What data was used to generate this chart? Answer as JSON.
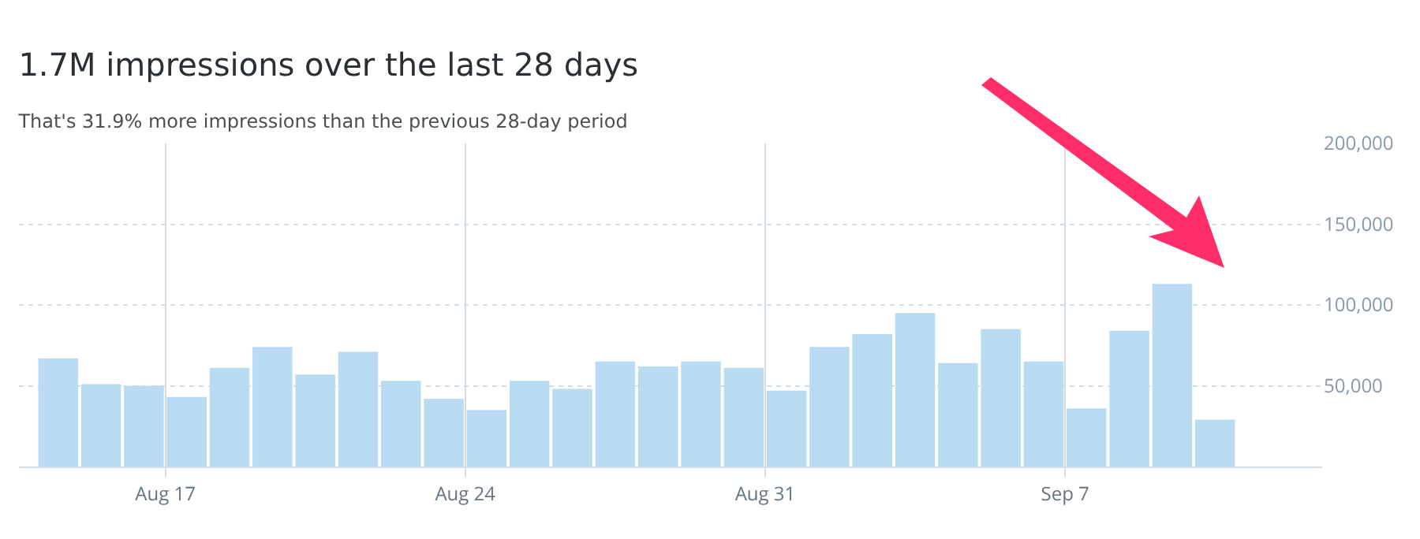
{
  "chart_data": {
    "type": "bar",
    "title": "1.7M impressions over the last 28 days",
    "subtitle": "That's 31.9% more impressions than the previous 28-day period",
    "x": [
      "--08-14T12:00",
      "--08-15T12:00",
      "--08-16T12:00",
      "--08-17T12:00",
      "--08-18T12:00",
      "--08-19T12:00",
      "--08-20T12:00",
      "--08-21T12:00",
      "--08-22T12:00",
      "--08-23T12:00",
      "--08-24T12:00",
      "--08-25T12:00",
      "--08-26T12:00",
      "--08-27T12:00",
      "--08-28T12:00",
      "--08-29T12:00",
      "--08-30T12:00",
      "--08-31T12:00",
      "--09-01T12:00",
      "--09-02T12:00",
      "--09-03T12:00",
      "--09-04T12:00",
      "--09-05T12:00",
      "--09-06T12:00",
      "--09-07T12:00",
      "--09-08T12:00",
      "--09-09T12:00",
      "--09-10T12:00"
    ],
    "values": [
      67000,
      51000,
      50000,
      43000,
      61000,
      74000,
      57000,
      71000,
      53000,
      42000,
      35000,
      53000,
      48000,
      65000,
      62000,
      65000,
      61000,
      47000,
      74000,
      82000,
      95000,
      64000,
      85000,
      65000,
      36000,
      84000,
      113000,
      29000
    ],
    "color": "#b9dcf3",
    "xlim": [
      "--08-13T14:00",
      "--09-13T00:00"
    ],
    "xticks": [
      {
        "value": "--08-17",
        "label": "Aug 17"
      },
      {
        "value": "--08-24",
        "label": "Aug 24"
      },
      {
        "value": "--08-31",
        "label": "Aug 31"
      },
      {
        "value": "--09-07",
        "label": "Sep 7"
      }
    ],
    "ylim": [
      0,
      200000
    ],
    "yticks": [
      {
        "value": 50000,
        "label": "50,000"
      },
      {
        "value": 100000,
        "label": "100,000"
      },
      {
        "value": 150000,
        "label": "150,000"
      },
      {
        "value": 200000,
        "label": "200,000"
      }
    ],
    "grid": true
  }
}
